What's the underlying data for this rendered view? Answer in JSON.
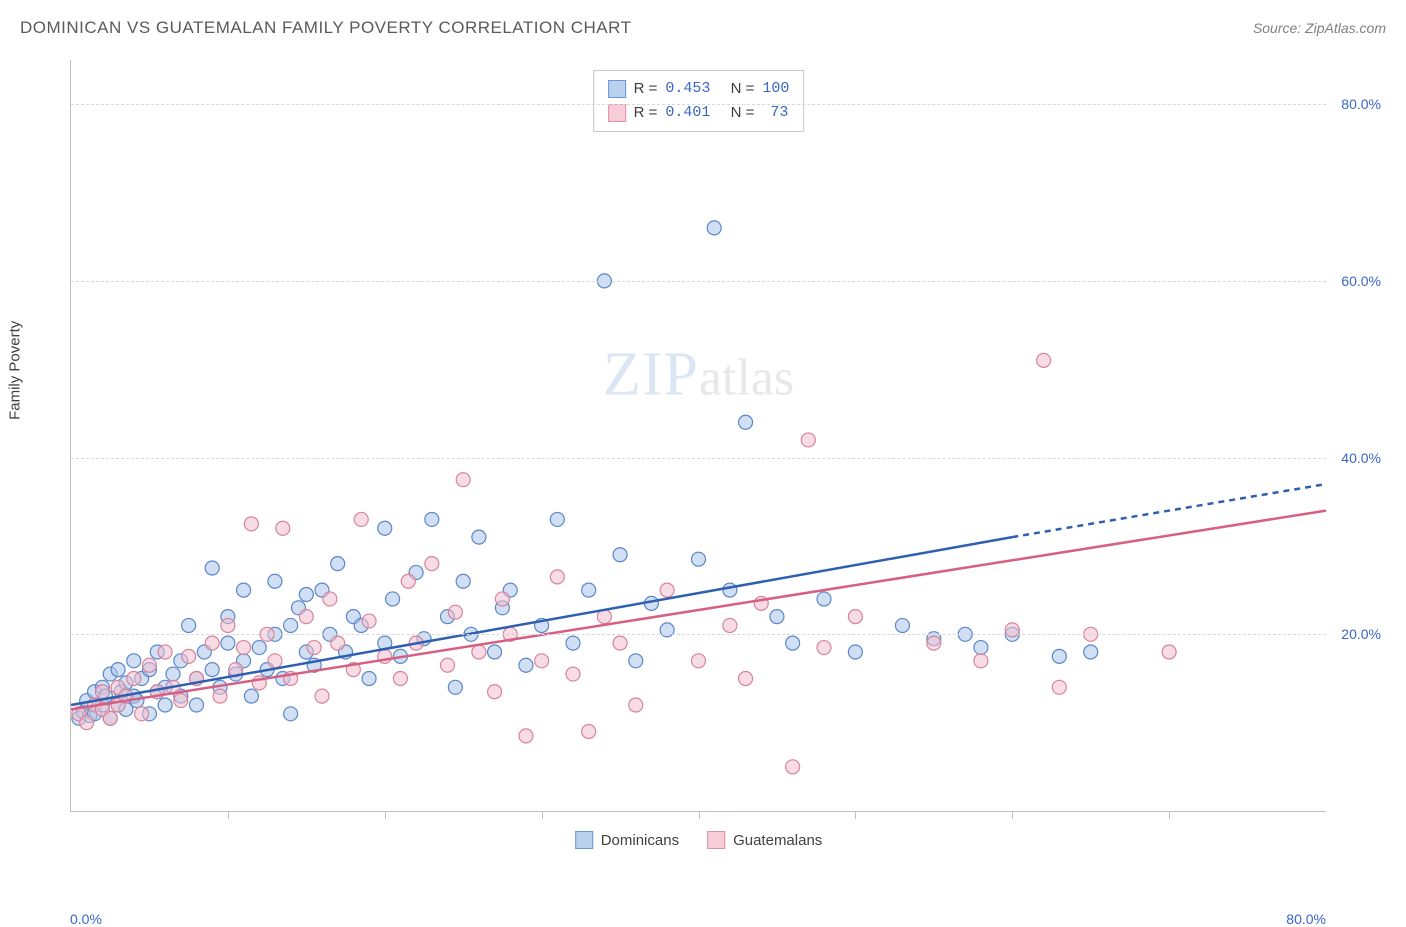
{
  "title": "DOMINICAN VS GUATEMALAN FAMILY POVERTY CORRELATION CHART",
  "source_prefix": "Source: ",
  "source": "ZipAtlas.com",
  "ylabel": "Family Poverty",
  "watermark_a": "ZIP",
  "watermark_b": "atlas",
  "chart": {
    "type": "scatter",
    "xlim": [
      0,
      80
    ],
    "ylim": [
      0,
      85
    ],
    "x_axis_label_min": "0.0%",
    "x_axis_label_max": "80.0%",
    "y_ticks": [
      {
        "v": 20,
        "label": "20.0%"
      },
      {
        "v": 40,
        "label": "40.0%"
      },
      {
        "v": 60,
        "label": "60.0%"
      },
      {
        "v": 80,
        "label": "80.0%"
      }
    ],
    "x_tick_positions": [
      10,
      20,
      30,
      40,
      50,
      60,
      70
    ],
    "grid_color": "#d8d8d8",
    "axis_color": "#c0c0c0",
    "background_color": "#ffffff",
    "tick_label_color": "#3a66c4",
    "marker_radius": 7,
    "marker_stroke_width": 1.2,
    "marker_fill_opacity": 0.55,
    "trend_line_width": 2.5,
    "trend_dash_pattern": "6,5"
  },
  "series": [
    {
      "key": "dominicans",
      "label": "Dominicans",
      "swatch_fill": "#b9d0ef",
      "swatch_border": "#6a96d6",
      "marker_fill": "#a9c5ea",
      "marker_stroke": "#5c87c8",
      "line_color": "#2f5fb0",
      "R_label": "R =",
      "R": "0.453",
      "N_label": "N =",
      "N": "100",
      "trend": {
        "x1": 0,
        "y1": 12,
        "x2_solid": 60,
        "y2_solid": 31,
        "x2_dash": 80,
        "y2_dash": 37
      },
      "points": [
        [
          0.5,
          10.5
        ],
        [
          0.8,
          11.2
        ],
        [
          1,
          12.5
        ],
        [
          1.2,
          10.8
        ],
        [
          1.5,
          13.5
        ],
        [
          1.5,
          11
        ],
        [
          2,
          12
        ],
        [
          2,
          14
        ],
        [
          2.2,
          13
        ],
        [
          2.5,
          10.5
        ],
        [
          2.5,
          15.5
        ],
        [
          3,
          12
        ],
        [
          3,
          16
        ],
        [
          3.2,
          13.5
        ],
        [
          3.5,
          14.5
        ],
        [
          3.5,
          11.5
        ],
        [
          4,
          17
        ],
        [
          4,
          13
        ],
        [
          4.2,
          12.5
        ],
        [
          4.5,
          15
        ],
        [
          5,
          11
        ],
        [
          5,
          16
        ],
        [
          5.5,
          13.5
        ],
        [
          5.5,
          18
        ],
        [
          6,
          14
        ],
        [
          6,
          12
        ],
        [
          6.5,
          15.5
        ],
        [
          7,
          17
        ],
        [
          7,
          13
        ],
        [
          7.5,
          21
        ],
        [
          8,
          15
        ],
        [
          8,
          12
        ],
        [
          8.5,
          18
        ],
        [
          9,
          16
        ],
        [
          9,
          27.5
        ],
        [
          9.5,
          14
        ],
        [
          10,
          19
        ],
        [
          10,
          22
        ],
        [
          10.5,
          15.5
        ],
        [
          11,
          17
        ],
        [
          11,
          25
        ],
        [
          11.5,
          13
        ],
        [
          12,
          18.5
        ],
        [
          12.5,
          16
        ],
        [
          13,
          20
        ],
        [
          13,
          26
        ],
        [
          13.5,
          15
        ],
        [
          14,
          21
        ],
        [
          14,
          11
        ],
        [
          14.5,
          23
        ],
        [
          15,
          18
        ],
        [
          15,
          24.5
        ],
        [
          15.5,
          16.5
        ],
        [
          16,
          25
        ],
        [
          16.5,
          20
        ],
        [
          17,
          28
        ],
        [
          17.5,
          18
        ],
        [
          18,
          22
        ],
        [
          18.5,
          21
        ],
        [
          19,
          15
        ],
        [
          20,
          19
        ],
        [
          20,
          32
        ],
        [
          20.5,
          24
        ],
        [
          21,
          17.5
        ],
        [
          22,
          27
        ],
        [
          22.5,
          19.5
        ],
        [
          23,
          33
        ],
        [
          24,
          22
        ],
        [
          24.5,
          14
        ],
        [
          25,
          26
        ],
        [
          25.5,
          20
        ],
        [
          26,
          31
        ],
        [
          27,
          18
        ],
        [
          27.5,
          23
        ],
        [
          28,
          25
        ],
        [
          29,
          16.5
        ],
        [
          30,
          21
        ],
        [
          31,
          33
        ],
        [
          32,
          19
        ],
        [
          33,
          25
        ],
        [
          34,
          60
        ],
        [
          35,
          29
        ],
        [
          36,
          17
        ],
        [
          37,
          23.5
        ],
        [
          38,
          20.5
        ],
        [
          40,
          28.5
        ],
        [
          41,
          66
        ],
        [
          42,
          25
        ],
        [
          43,
          44
        ],
        [
          45,
          22
        ],
        [
          46,
          19
        ],
        [
          48,
          24
        ],
        [
          50,
          18
        ],
        [
          53,
          21
        ],
        [
          55,
          19.5
        ],
        [
          57,
          20
        ],
        [
          58,
          18.5
        ],
        [
          60,
          20
        ],
        [
          63,
          17.5
        ],
        [
          65,
          18
        ]
      ]
    },
    {
      "key": "guatemalans",
      "label": "Guatemalans",
      "swatch_fill": "#f6cdd8",
      "swatch_border": "#e08fa6",
      "marker_fill": "#f2c0cf",
      "marker_stroke": "#d6849c",
      "line_color": "#d65f82",
      "R_label": "R =",
      "R": "0.401",
      "N_label": "N =",
      "N": "73",
      "trend": {
        "x1": 0,
        "y1": 11.5,
        "x2_solid": 80,
        "y2_solid": 34,
        "x2_dash": 80,
        "y2_dash": 34
      },
      "points": [
        [
          0.5,
          11
        ],
        [
          1,
          10
        ],
        [
          1.5,
          12
        ],
        [
          2,
          11.5
        ],
        [
          2,
          13.5
        ],
        [
          2.5,
          10.5
        ],
        [
          3,
          14
        ],
        [
          3,
          12
        ],
        [
          3.5,
          13
        ],
        [
          4,
          15
        ],
        [
          4.5,
          11
        ],
        [
          5,
          16.5
        ],
        [
          5.5,
          13.5
        ],
        [
          6,
          18
        ],
        [
          6.5,
          14
        ],
        [
          7,
          12.5
        ],
        [
          7.5,
          17.5
        ],
        [
          8,
          15
        ],
        [
          9,
          19
        ],
        [
          9.5,
          13
        ],
        [
          10,
          21
        ],
        [
          10.5,
          16
        ],
        [
          11,
          18.5
        ],
        [
          11.5,
          32.5
        ],
        [
          12,
          14.5
        ],
        [
          12.5,
          20
        ],
        [
          13,
          17
        ],
        [
          13.5,
          32
        ],
        [
          14,
          15
        ],
        [
          15,
          22
        ],
        [
          15.5,
          18.5
        ],
        [
          16,
          13
        ],
        [
          16.5,
          24
        ],
        [
          17,
          19
        ],
        [
          18,
          16
        ],
        [
          18.5,
          33
        ],
        [
          19,
          21.5
        ],
        [
          20,
          17.5
        ],
        [
          21,
          15
        ],
        [
          21.5,
          26
        ],
        [
          22,
          19
        ],
        [
          23,
          28
        ],
        [
          24,
          16.5
        ],
        [
          24.5,
          22.5
        ],
        [
          25,
          37.5
        ],
        [
          26,
          18
        ],
        [
          27,
          13.5
        ],
        [
          27.5,
          24
        ],
        [
          28,
          20
        ],
        [
          29,
          8.5
        ],
        [
          30,
          17
        ],
        [
          31,
          26.5
        ],
        [
          32,
          15.5
        ],
        [
          33,
          9
        ],
        [
          34,
          22
        ],
        [
          35,
          19
        ],
        [
          36,
          12
        ],
        [
          38,
          25
        ],
        [
          40,
          17
        ],
        [
          42,
          21
        ],
        [
          43,
          15
        ],
        [
          44,
          23.5
        ],
        [
          46,
          5
        ],
        [
          47,
          42
        ],
        [
          48,
          18.5
        ],
        [
          50,
          22
        ],
        [
          55,
          19
        ],
        [
          58,
          17
        ],
        [
          60,
          20.5
        ],
        [
          62,
          51
        ],
        [
          63,
          14
        ],
        [
          65,
          20
        ],
        [
          70,
          18
        ]
      ]
    }
  ]
}
